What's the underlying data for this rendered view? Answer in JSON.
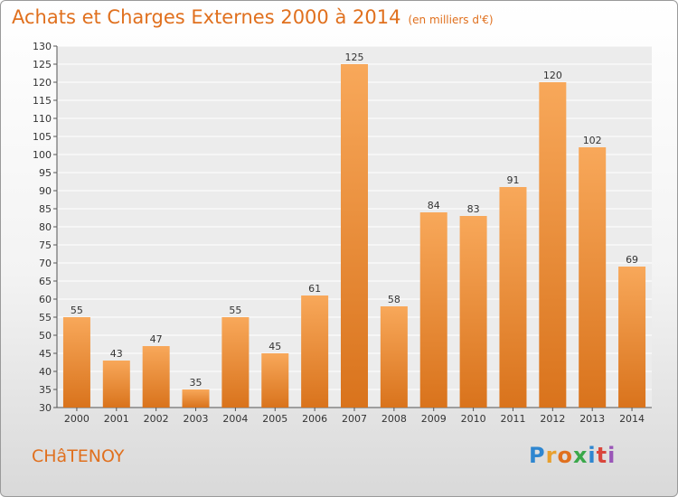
{
  "header": {
    "title": "Achats et Charges Externes 2000 à 2014",
    "subtitle": "(en milliers d'€)"
  },
  "footer": {
    "place": "CHâTENOY",
    "logo": [
      "P",
      "r",
      "o",
      "x",
      "i",
      "t",
      "i"
    ],
    "logo_colors": [
      "#2e86d0",
      "#e8a02e",
      "#e0701e",
      "#3aa84a",
      "#2e86d0",
      "#d9463c",
      "#9a56b8"
    ]
  },
  "colors": {
    "bar_light": "#f8a85a",
    "bar_dark": "#d9731c",
    "text": "#333333",
    "accent": "#e0701e"
  },
  "chart_data": {
    "type": "bar",
    "categories": [
      "2000",
      "2001",
      "2002",
      "2003",
      "2004",
      "2005",
      "2006",
      "2007",
      "2008",
      "2009",
      "2010",
      "2011",
      "2012",
      "2013",
      "2014"
    ],
    "values": [
      55,
      43,
      47,
      35,
      55,
      45,
      61,
      125,
      58,
      84,
      83,
      91,
      120,
      102,
      69
    ],
    "ylim": [
      30,
      130
    ],
    "yticks": [
      30,
      35,
      40,
      45,
      50,
      55,
      60,
      65,
      70,
      75,
      80,
      85,
      90,
      95,
      100,
      105,
      110,
      115,
      120,
      125,
      130
    ],
    "grid": true
  }
}
